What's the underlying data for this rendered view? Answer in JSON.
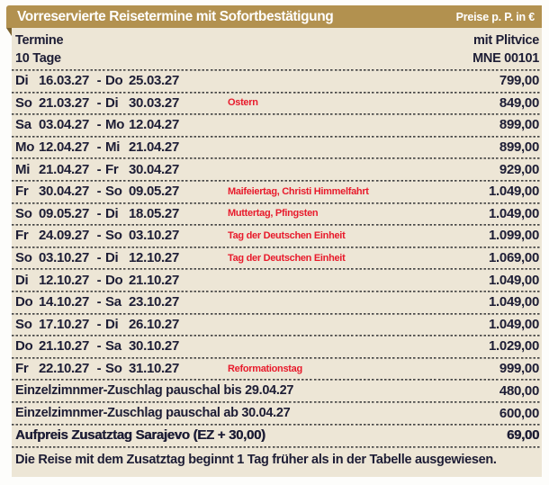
{
  "title_bar": {
    "title": "Vorreservierte Reisetermine mit Sofortbestätigung",
    "price_unit_label": "Preise p. P. in €"
  },
  "subheader": {
    "termine_label": "Termine",
    "duration": "10 Tage",
    "variant": "mit Plitvice",
    "tour_code": "MNE 00101"
  },
  "colors": {
    "ribbon_gold": "#b2914f",
    "ribbon_fold": "#7a622f",
    "table_beige": "#ede6d6",
    "text_dark": "#1d1d35",
    "holiday_red": "#e81b2c"
  },
  "rows": [
    {
      "d1": "Di",
      "date1": "16.03.27",
      "d2": "Do",
      "date2": "25.03.27",
      "note": "",
      "price": "799,00"
    },
    {
      "d1": "So",
      "date1": "21.03.27",
      "d2": "Di",
      "date2": "30.03.27",
      "note": "Ostern",
      "price": "849,00"
    },
    {
      "d1": "Sa",
      "date1": "03.04.27",
      "d2": "Mo",
      "date2": "12.04.27",
      "note": "",
      "price": "899,00"
    },
    {
      "d1": "Mo",
      "date1": "12.04.27",
      "d2": "Mi",
      "date2": "21.04.27",
      "note": "",
      "price": "899,00"
    },
    {
      "d1": "Mi",
      "date1": "21.04.27",
      "d2": "Fr",
      "date2": "30.04.27",
      "note": "",
      "price": "929,00"
    },
    {
      "d1": "Fr",
      "date1": "30.04.27",
      "d2": "So",
      "date2": "09.05.27",
      "note": "Maifeiertag, Christi Himmelfahrt",
      "price": "1.049,00"
    },
    {
      "d1": "So",
      "date1": "09.05.27",
      "d2": "Di",
      "date2": "18.05.27",
      "note": "Muttertag, Pfingsten",
      "price": "1.049,00"
    },
    {
      "d1": "Fr",
      "date1": "24.09.27",
      "d2": "So",
      "date2": "03.10.27",
      "note": "Tag der Deutschen Einheit",
      "price": "1.099,00"
    },
    {
      "d1": "So",
      "date1": "03.10.27",
      "d2": "Di",
      "date2": "12.10.27",
      "note": "Tag der Deutschen Einheit",
      "price": "1.069,00"
    },
    {
      "d1": "Di",
      "date1": "12.10.27",
      "d2": "Do",
      "date2": "21.10.27",
      "note": "",
      "price": "1.049,00"
    },
    {
      "d1": "Do",
      "date1": "14.10.27",
      "d2": "Sa",
      "date2": "23.10.27",
      "note": "",
      "price": "1.049,00"
    },
    {
      "d1": "So",
      "date1": "17.10.27",
      "d2": "Di",
      "date2": "26.10.27",
      "note": "",
      "price": "1.049,00"
    },
    {
      "d1": "Do",
      "date1": "21.10.27",
      "d2": "Sa",
      "date2": "30.10.27",
      "note": "",
      "price": "1.029,00"
    },
    {
      "d1": "Fr",
      "date1": "22.10.27",
      "d2": "So",
      "date2": "31.10.27",
      "note": "Reformationstag",
      "price": "999,00"
    }
  ],
  "extras": [
    {
      "label": "Einzelzimnmer-Zuschlag pauschal bis 29.04.27",
      "price": "480,00",
      "bold": false
    },
    {
      "label": "Einzelzimnmer-Zuschlag pauschal ab 30.04.27",
      "price": "600,00",
      "bold": false
    },
    {
      "label": "Aufpreis Zusatztag Sarajevo (EZ + 30,00)",
      "price": "69,00",
      "bold": true
    }
  ],
  "footnote": "Die Reise mit dem Zusatztag beginnt 1 Tag früher als in der Tabelle ausgewiesen."
}
